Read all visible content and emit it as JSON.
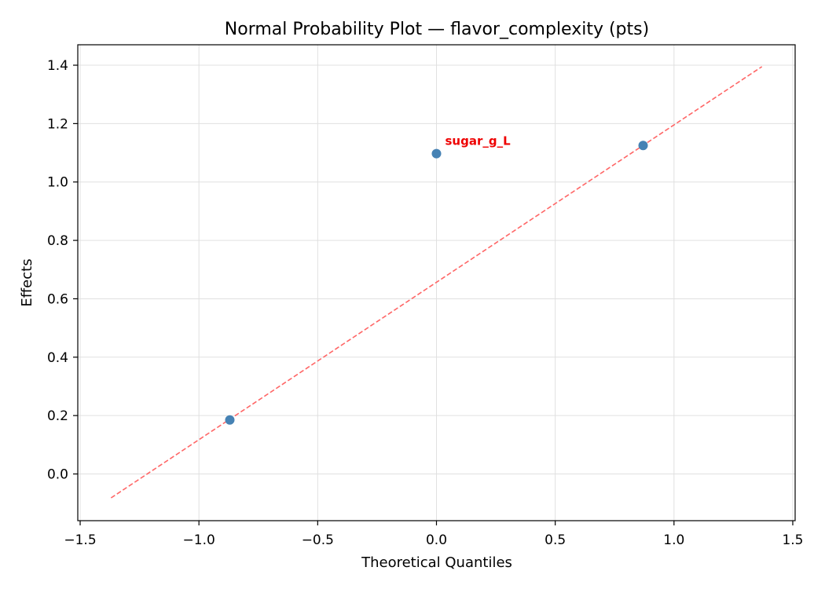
{
  "chart_data": {
    "type": "scatter",
    "title": "Normal Probability Plot — flavor_complexity (pts)",
    "xlabel": "Theoretical Quantiles",
    "ylabel": "Effects",
    "xlim": [
      -1.51,
      1.51
    ],
    "ylim": [
      -0.16,
      1.47
    ],
    "grid": true,
    "x_ticks": [
      -1.5,
      -1.0,
      -0.5,
      0.0,
      0.5,
      1.0,
      1.5
    ],
    "x_tick_labels": [
      "−1.5",
      "−1.0",
      "−0.5",
      "0.0",
      "0.5",
      "1.0",
      "1.5"
    ],
    "y_ticks": [
      0.0,
      0.2,
      0.4,
      0.6,
      0.8,
      1.0,
      1.2,
      1.4
    ],
    "y_tick_labels": [
      "0.0",
      "0.2",
      "0.4",
      "0.6",
      "0.8",
      "1.0",
      "1.2",
      "1.4"
    ],
    "points": [
      {
        "x": -0.87,
        "y": 0.185
      },
      {
        "x": 0.0,
        "y": 1.097
      },
      {
        "x": 0.87,
        "y": 1.125
      }
    ],
    "reference_line": {
      "x": [
        -1.37,
        1.37
      ],
      "y": [
        -0.082,
        1.395
      ],
      "style": "dashed",
      "color": "#ff6666"
    },
    "annotations": [
      {
        "text": "sugar_g_L",
        "x": 0.0,
        "y": 1.097,
        "color": "#ee0000"
      }
    ],
    "colors": {
      "points": "#4682b4",
      "reference_line": "#ff6666",
      "annotation": "#ee0000",
      "grid": "#e0e0e0"
    }
  }
}
